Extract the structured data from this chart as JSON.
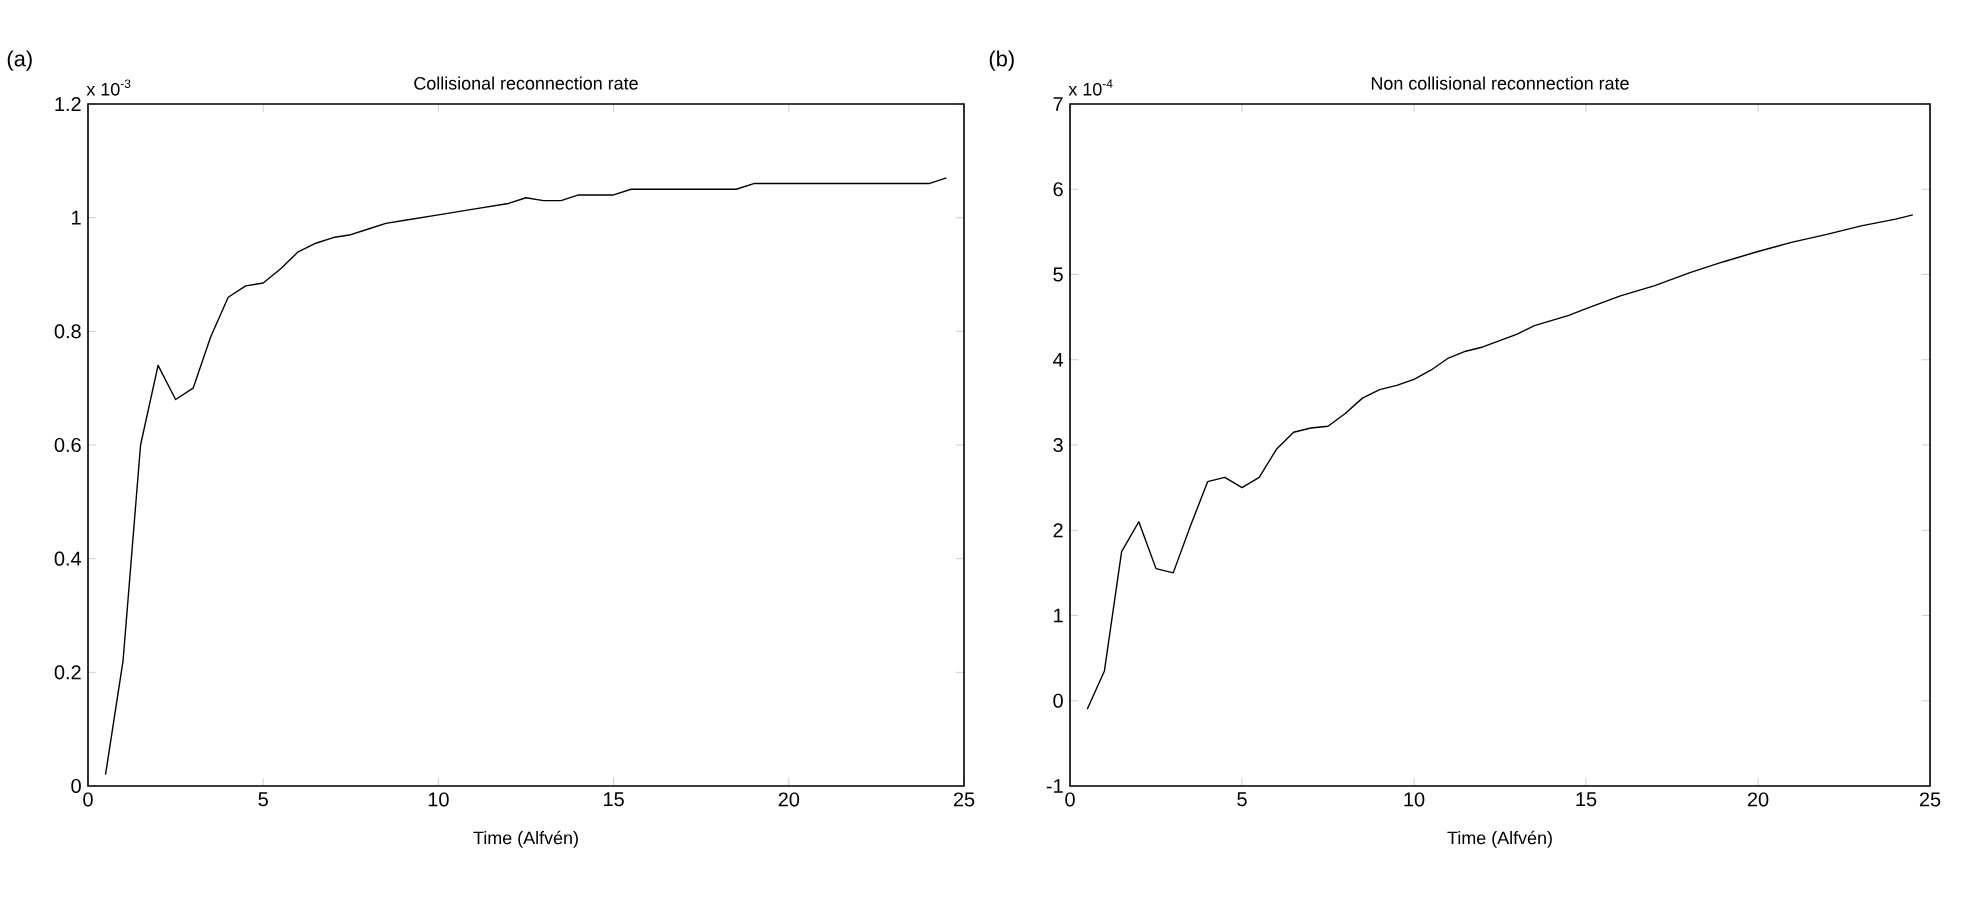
{
  "chart_data": [
    {
      "type": "line",
      "title": "Collisional reconnection rate",
      "xlabel": "Time (Alfvén)",
      "annotations": [
        "(a)",
        "x 10$^{-3}$"
      ],
      "x": [
        0.5,
        1,
        1.5,
        2,
        2.5,
        3,
        3.5,
        4,
        4.5,
        5,
        5.5,
        6,
        6.5,
        7,
        7.5,
        8,
        8.5,
        9,
        10,
        11,
        12,
        12.5,
        13,
        13.5,
        14,
        15,
        15.5,
        18.5,
        19,
        24,
        24.5
      ],
      "series": [
        {
          "color": "#000000",
          "values": [
            0.02,
            0.22,
            0.6,
            0.74,
            0.68,
            0.7,
            0.79,
            0.86,
            0.88,
            0.885,
            0.91,
            0.94,
            0.955,
            0.965,
            0.97,
            0.98,
            0.99,
            0.995,
            1.005,
            1.015,
            1.025,
            1.035,
            1.03,
            1.03,
            1.04,
            1.04,
            1.05,
            1.05,
            1.06,
            1.06,
            1.07
          ]
        }
      ],
      "xlim": [
        0,
        25
      ],
      "xticks": [
        0,
        5,
        10,
        15,
        20,
        25
      ],
      "ylim": [
        0,
        1.2
      ],
      "yticks": [
        0,
        0.2,
        0.4,
        0.6,
        0.8,
        1,
        1.2
      ],
      "marker": "none",
      "line_style": "solid"
    },
    {
      "type": "line",
      "title": "Non collisional reconnection rate",
      "xlabel": "Time (Alfvén)",
      "annotations": [
        "(b)",
        "x 10$^{-4}$"
      ],
      "x": [
        0.5,
        1,
        1.5,
        2,
        2.5,
        3,
        3.5,
        4,
        4.5,
        5,
        5.5,
        6,
        6.5,
        7,
        7.5,
        8,
        8.5,
        9,
        9.5,
        10,
        10.5,
        11,
        11.5,
        12,
        13,
        13.5,
        14.5,
        15,
        16,
        17,
        18,
        19,
        20,
        21,
        22,
        23,
        24,
        24.5
      ],
      "series": [
        {
          "color": "#000000",
          "values": [
            -0.1,
            0.35,
            1.75,
            2.1,
            1.55,
            1.5,
            2.05,
            2.57,
            2.62,
            2.5,
            2.62,
            2.95,
            3.15,
            3.2,
            3.22,
            3.37,
            3.55,
            3.65,
            3.7,
            3.77,
            3.88,
            4.02,
            4.1,
            4.15,
            4.3,
            4.4,
            4.52,
            4.6,
            4.75,
            4.87,
            5.02,
            5.15,
            5.27,
            5.38,
            5.47,
            5.57,
            5.65,
            5.7
          ]
        }
      ],
      "xlim": [
        0,
        25
      ],
      "xticks": [
        0,
        5,
        10,
        15,
        20,
        25
      ],
      "ylim": [
        -1,
        7
      ],
      "yticks": [
        -1,
        0,
        1,
        2,
        3,
        4,
        5,
        6,
        7
      ],
      "marker": "none",
      "line_style": "solid"
    }
  ]
}
